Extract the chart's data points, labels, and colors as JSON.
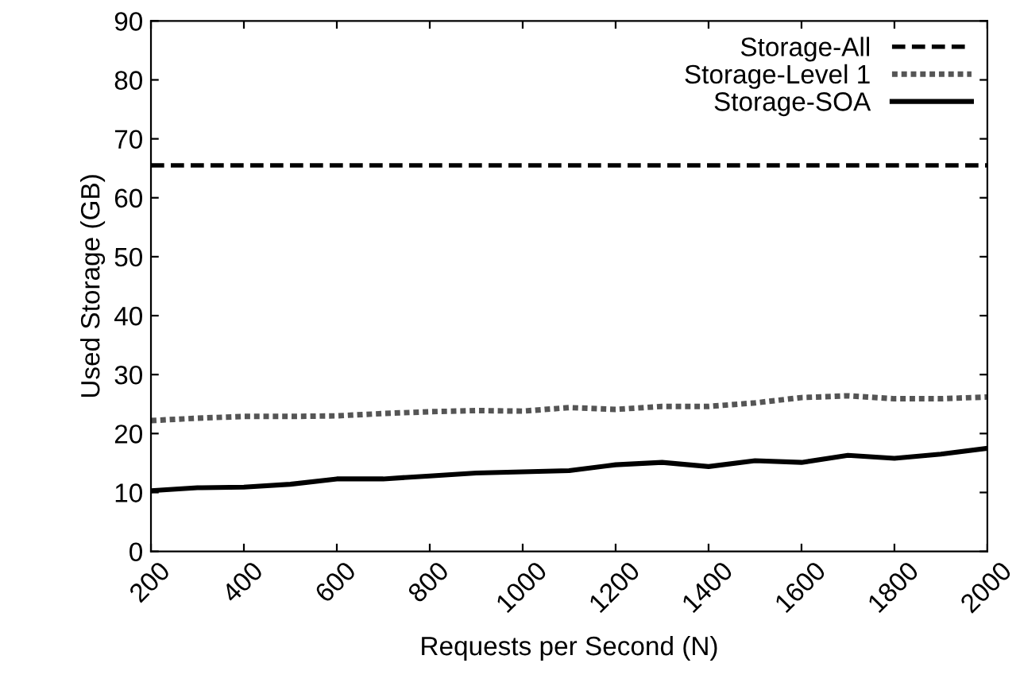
{
  "chart_data": {
    "type": "line",
    "xlabel": "Requests per Second (N)",
    "ylabel": "Used Storage (GB)",
    "x": [
      200,
      300,
      400,
      500,
      600,
      700,
      800,
      900,
      1000,
      1100,
      1200,
      1300,
      1400,
      1500,
      1600,
      1700,
      1800,
      1900,
      2000
    ],
    "series": [
      {
        "name": "Storage-All",
        "color": "#000000",
        "line_style": "dashed",
        "values": [
          65.5,
          65.5,
          65.5,
          65.5,
          65.5,
          65.5,
          65.5,
          65.5,
          65.5,
          65.5,
          65.5,
          65.5,
          65.5,
          65.5,
          65.5,
          65.5,
          65.5,
          65.5,
          65.5
        ]
      },
      {
        "name": "Storage-Level 1",
        "color": "#555555",
        "line_style": "dotted",
        "values": [
          22.2,
          22.6,
          22.9,
          22.9,
          23.0,
          23.4,
          23.7,
          23.9,
          23.8,
          24.4,
          24.1,
          24.6,
          24.6,
          25.2,
          26.1,
          26.4,
          25.9,
          25.9,
          26.2
        ]
      },
      {
        "name": "Storage-SOA",
        "color": "#000000",
        "line_style": "solid",
        "values": [
          10.3,
          10.8,
          10.9,
          11.4,
          12.3,
          12.3,
          12.8,
          13.3,
          13.5,
          13.7,
          14.7,
          15.1,
          14.4,
          15.4,
          15.1,
          16.3,
          15.8,
          16.5,
          17.5
        ]
      }
    ],
    "xlim": [
      200,
      2000
    ],
    "xticks": [
      200,
      400,
      600,
      800,
      1000,
      1200,
      1400,
      1600,
      1800,
      2000
    ],
    "ylim": [
      0,
      90
    ],
    "yticks": [
      0,
      10,
      20,
      30,
      40,
      50,
      60,
      70,
      80,
      90
    ],
    "grid": false,
    "legend": "top right",
    "marker": "none"
  }
}
